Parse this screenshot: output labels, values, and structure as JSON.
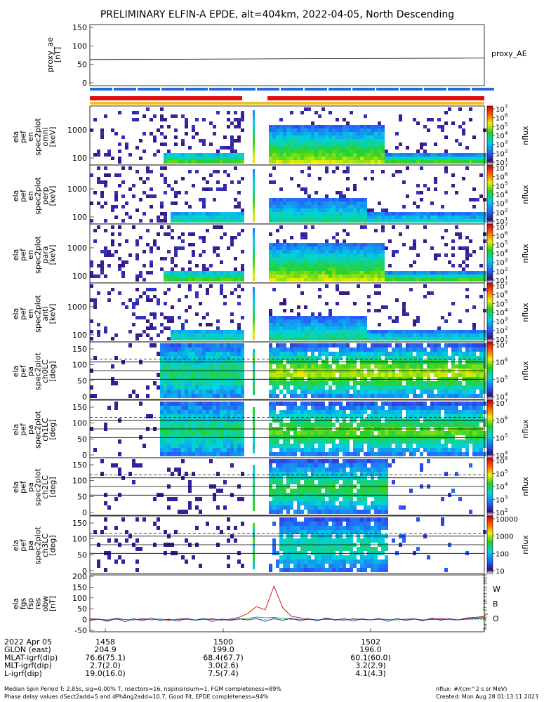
{
  "title": "PRELIMINARY ELFIN-A EPDE, alt=404km, 2022-04-05, North Descending",
  "panels": {
    "ae": {
      "ylabel": [
        "proxy_ae",
        "[nT]"
      ],
      "ticks": [
        "150",
        "100",
        "50",
        "0"
      ],
      "right_label": "proxy_AE"
    },
    "spec": [
      {
        "ylabel": [
          "ela",
          "pef",
          "en",
          "spec2plot",
          "omni",
          "[keV]"
        ],
        "ticks": [
          "1000",
          "100"
        ],
        "cbar_ticks": [
          "10",
          "10",
          "10",
          "10",
          "10",
          "10",
          "10"
        ],
        "cbar_exps": [
          "7",
          "6",
          "5",
          "4",
          "3",
          "2",
          "1"
        ],
        "cbar_label": "nflux"
      },
      {
        "ylabel": [
          "ela",
          "pef",
          "en",
          "spec2plot",
          "perp",
          "[keV]"
        ],
        "ticks": [
          "1000",
          "100"
        ],
        "cbar_ticks": [
          "10",
          "10",
          "10",
          "10",
          "10",
          "10",
          "10"
        ],
        "cbar_exps": [
          "7",
          "6",
          "5",
          "4",
          "3",
          "2",
          "1"
        ],
        "cbar_label": "nflux"
      },
      {
        "ylabel": [
          "ela",
          "pef",
          "en",
          "spec2plot",
          "para",
          "[keV]"
        ],
        "ticks": [
          "1000",
          "100"
        ],
        "cbar_ticks": [
          "10",
          "10",
          "10",
          "10",
          "10",
          "10",
          "10"
        ],
        "cbar_exps": [
          "7",
          "6",
          "5",
          "4",
          "3",
          "2",
          "1"
        ],
        "cbar_label": "nflux"
      },
      {
        "ylabel": [
          "ela",
          "pef",
          "en",
          "spec2plot",
          "anti",
          "[keV]"
        ],
        "ticks": [
          "1000",
          "100"
        ],
        "cbar_ticks": [
          "10",
          "10",
          "10",
          "10",
          "10",
          "10",
          "10"
        ],
        "cbar_exps": [
          "7",
          "6",
          "5",
          "4",
          "3",
          "2",
          "1"
        ],
        "cbar_label": "nflux"
      }
    ],
    "pa": [
      {
        "ylabel": [
          "ela",
          "pef",
          "pa",
          "spec2plot",
          "ch0LC",
          "[deg]"
        ],
        "ticks": [
          "150",
          "100",
          "50",
          "0"
        ],
        "cbar_ticks": [
          "10",
          "10",
          "10",
          "10"
        ],
        "cbar_exps": [
          "7",
          "6",
          "5",
          "4"
        ],
        "cbar_label": "nflux"
      },
      {
        "ylabel": [
          "ela",
          "pef",
          "pa",
          "spec2plot",
          "ch1LC",
          "[deg]"
        ],
        "ticks": [
          "150",
          "100",
          "50",
          "0"
        ],
        "cbar_ticks": [
          "10",
          "10",
          "10",
          "10"
        ],
        "cbar_exps": [
          "7",
          "6",
          "5",
          "4"
        ],
        "cbar_label": "nflux"
      },
      {
        "ylabel": [
          "ela",
          "pef",
          "pa",
          "spec2plot",
          "ch2LC",
          "[deg]"
        ],
        "ticks": [
          "150",
          "100",
          "50",
          "0"
        ],
        "cbar_ticks": [
          "10",
          "10",
          "10",
          "10",
          "10"
        ],
        "cbar_exps": [
          "6",
          "5",
          "4",
          "3",
          "2"
        ],
        "cbar_label": "nflux"
      },
      {
        "ylabel": [
          "ela",
          "pef",
          "pa",
          "spec2plot",
          "ch3LC",
          "[deg]"
        ],
        "ticks": [
          "150",
          "100",
          "50",
          "0"
        ],
        "cbar_ticks": [
          "10000",
          "1000",
          "100",
          "10"
        ],
        "cbar_exps": [
          "",
          "",
          "",
          ""
        ],
        "cbar_label": "nflux"
      }
    ],
    "fgs": {
      "ylabel": [
        "ela",
        "fgs",
        "fsp",
        "res",
        "obw",
        "[nT]"
      ],
      "ticks": [
        "200",
        "150",
        "100",
        "50",
        "0",
        "-50"
      ],
      "legend": [
        {
          "label": "W",
          "color": "#d40000"
        },
        {
          "label": "B",
          "color": "#00b000"
        },
        {
          "label": "O",
          "color": "#1030d0"
        }
      ],
      "stamp": "Sun Aug 27 18:13:11 2023"
    }
  },
  "chart_data": {
    "type": "line",
    "proxy_ae": {
      "ylim": [
        0,
        150
      ],
      "y_start": 63,
      "y_end": 67
    },
    "fgs": {
      "ylim": [
        -50,
        200
      ],
      "series": [
        {
          "name": "W",
          "color": "#d40000",
          "y": [
            4,
            2,
            -3,
            6,
            0,
            -2,
            5,
            -1,
            3,
            -4,
            2,
            5,
            -2,
            1,
            4,
            -3,
            2,
            10,
            28,
            60,
            45,
            155,
            55,
            15,
            8,
            3,
            -2,
            5,
            0,
            -3,
            4,
            1,
            -2,
            3,
            0,
            -1,
            2,
            4,
            -3,
            2,
            5,
            0,
            -2,
            8,
            10,
            15
          ]
        },
        {
          "name": "B",
          "color": "#00b000",
          "y": [
            0,
            1,
            -1,
            2,
            0,
            -1,
            1,
            0,
            2,
            -1,
            0,
            1,
            -2,
            0,
            1,
            -1,
            0,
            2,
            5,
            12,
            8,
            10,
            6,
            2,
            1,
            0,
            -1,
            1,
            0,
            -1,
            2,
            0,
            -1,
            1,
            0,
            -1,
            1,
            2,
            -1,
            0,
            1,
            0,
            -1,
            2,
            3,
            4
          ]
        },
        {
          "name": "O",
          "color": "#1030d0",
          "y": [
            -5,
            3,
            -8,
            6,
            -10,
            4,
            -6,
            8,
            -4,
            2,
            -7,
            5,
            -3,
            6,
            -9,
            3,
            -5,
            4,
            -2,
            6,
            -8,
            5,
            -4,
            7,
            -6,
            3,
            -5,
            8,
            -3,
            6,
            -7,
            4,
            -2,
            5,
            -8,
            6,
            -4,
            3,
            -6,
            7,
            -3,
            5,
            -2,
            4,
            6,
            10
          ]
        }
      ]
    }
  },
  "footer": {
    "rows": [
      {
        "label": "2022 Apr 05",
        "values": [
          "1458",
          "1500",
          "1502"
        ]
      },
      {
        "label": "GLON (east)",
        "values": [
          "204.9",
          "199.0",
          "196.0"
        ]
      },
      {
        "label": "MLAT-igrf(dip)",
        "values": [
          "76.6(75.1)",
          "68.4(67.7)",
          "60.1(60.0)"
        ]
      },
      {
        "label": "MLT-igrf(dip)",
        "values": [
          "2.7(2.0)",
          "3.0(2.6)",
          "3.2(2.9)"
        ]
      },
      {
        "label": "L-igrf(dip)",
        "values": [
          "19.0(16.0)",
          "7.5(7.4)",
          "4.1(4.3)"
        ]
      }
    ],
    "note1": "Median Spin Period T: 2.85s, sig=0.00% T, nsectors=16, nspinsinsum=1, FGM completeness=89%",
    "note2": "Phase delay values dSect2add=5 and dPhAng2add=10.7, Good Fit, EPDE completeness=94%",
    "units": "nflux: #/(cm^2 s sr MeV)",
    "created": "Created: Mon Aug 28 01:13:11 2023"
  }
}
